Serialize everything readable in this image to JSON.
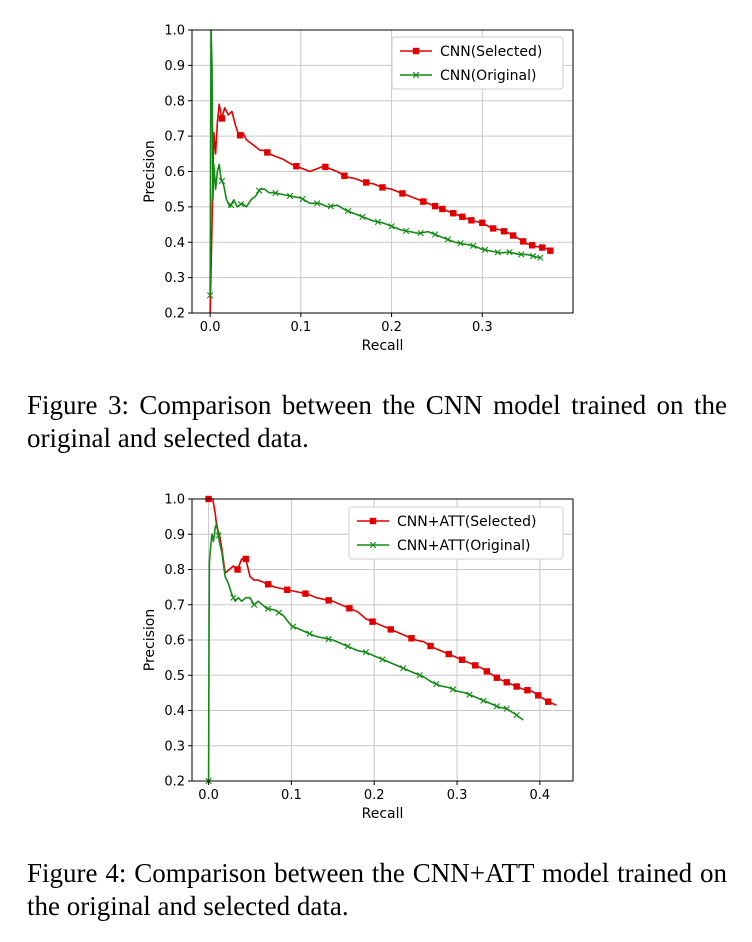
{
  "chart_data": [
    {
      "type": "line",
      "title": "",
      "xlabel": "Recall",
      "ylabel": "Precision",
      "xlim": [
        -0.02,
        0.4
      ],
      "ylim": [
        0.2,
        1.0
      ],
      "xticks": [
        "0.0",
        "0.1",
        "0.2",
        "0.3"
      ],
      "xtick_values": [
        0.0,
        0.1,
        0.2,
        0.3
      ],
      "yticks": [
        "0.2",
        "0.3",
        "0.4",
        "0.5",
        "0.6",
        "0.7",
        "0.8",
        "0.9",
        "1.0"
      ],
      "ytick_values": [
        0.2,
        0.3,
        0.4,
        0.5,
        0.6,
        0.7,
        0.8,
        0.9,
        1.0
      ],
      "grid": true,
      "legend_position": "top-right",
      "series": [
        {
          "name": "CNN(Selected)",
          "color": "#e00000",
          "marker": "square",
          "x": [
            0.0,
            0.002,
            0.004,
            0.006,
            0.008,
            0.01,
            0.013,
            0.016,
            0.02,
            0.024,
            0.028,
            0.032,
            0.036,
            0.04,
            0.045,
            0.05,
            0.055,
            0.06,
            0.065,
            0.07,
            0.08,
            0.09,
            0.1,
            0.11,
            0.12,
            0.125,
            0.13,
            0.14,
            0.15,
            0.16,
            0.17,
            0.18,
            0.19,
            0.2,
            0.21,
            0.22,
            0.23,
            0.24,
            0.25,
            0.26,
            0.27,
            0.28,
            0.29,
            0.3,
            0.31,
            0.32,
            0.33,
            0.34,
            0.35,
            0.36,
            0.37,
            0.378
          ],
          "y": [
            0.2,
            0.45,
            0.71,
            0.65,
            0.74,
            0.79,
            0.75,
            0.78,
            0.76,
            0.77,
            0.73,
            0.7,
            0.71,
            0.69,
            0.68,
            0.67,
            0.66,
            0.66,
            0.65,
            0.645,
            0.635,
            0.62,
            0.61,
            0.6,
            0.61,
            0.615,
            0.61,
            0.6,
            0.585,
            0.58,
            0.57,
            0.565,
            0.555,
            0.55,
            0.54,
            0.53,
            0.52,
            0.51,
            0.5,
            0.49,
            0.48,
            0.47,
            0.46,
            0.455,
            0.44,
            0.435,
            0.425,
            0.41,
            0.395,
            0.388,
            0.383,
            0.372
          ],
          "marked_x": [
            0.013,
            0.033,
            0.063,
            0.095,
            0.127,
            0.148,
            0.172,
            0.19,
            0.212,
            0.235,
            0.248,
            0.256,
            0.268,
            0.278,
            0.288,
            0.3,
            0.312,
            0.324,
            0.334,
            0.345,
            0.355,
            0.366,
            0.375
          ]
        },
        {
          "name": "CNN(Original)",
          "color": "#138a13",
          "marker": "x",
          "x": [
            0.0,
            0.001,
            0.002,
            0.003,
            0.004,
            0.006,
            0.008,
            0.01,
            0.012,
            0.015,
            0.018,
            0.022,
            0.026,
            0.03,
            0.035,
            0.04,
            0.045,
            0.05,
            0.055,
            0.06,
            0.065,
            0.07,
            0.08,
            0.09,
            0.1,
            0.11,
            0.12,
            0.13,
            0.14,
            0.15,
            0.16,
            0.17,
            0.18,
            0.19,
            0.2,
            0.21,
            0.22,
            0.23,
            0.24,
            0.25,
            0.26,
            0.27,
            0.28,
            0.29,
            0.3,
            0.31,
            0.32,
            0.33,
            0.34,
            0.35,
            0.36,
            0.365
          ],
          "y": [
            0.25,
            1.0,
            0.9,
            0.52,
            0.62,
            0.55,
            0.6,
            0.62,
            0.58,
            0.56,
            0.52,
            0.5,
            0.52,
            0.5,
            0.51,
            0.5,
            0.52,
            0.53,
            0.55,
            0.55,
            0.54,
            0.54,
            0.535,
            0.53,
            0.525,
            0.51,
            0.51,
            0.5,
            0.505,
            0.49,
            0.48,
            0.47,
            0.46,
            0.455,
            0.445,
            0.435,
            0.43,
            0.425,
            0.43,
            0.42,
            0.41,
            0.4,
            0.395,
            0.39,
            0.38,
            0.375,
            0.37,
            0.372,
            0.366,
            0.365,
            0.358,
            0.356
          ],
          "marked_x": [
            0.0,
            0.013,
            0.023,
            0.034,
            0.054,
            0.072,
            0.088,
            0.102,
            0.118,
            0.133,
            0.152,
            0.168,
            0.185,
            0.2,
            0.216,
            0.232,
            0.248,
            0.262,
            0.276,
            0.29,
            0.303,
            0.317,
            0.33,
            0.343,
            0.356,
            0.364
          ]
        }
      ]
    },
    {
      "type": "line",
      "title": "",
      "xlabel": "Recall",
      "ylabel": "Precision",
      "xlim": [
        -0.02,
        0.44
      ],
      "ylim": [
        0.2,
        1.0
      ],
      "xticks": [
        "0.0",
        "0.1",
        "0.2",
        "0.3",
        "0.4"
      ],
      "xtick_values": [
        0.0,
        0.1,
        0.2,
        0.3,
        0.4
      ],
      "yticks": [
        "0.2",
        "0.3",
        "0.4",
        "0.5",
        "0.6",
        "0.7",
        "0.8",
        "0.9",
        "1.0"
      ],
      "ytick_values": [
        0.2,
        0.3,
        0.4,
        0.5,
        0.6,
        0.7,
        0.8,
        0.9,
        1.0
      ],
      "grid": true,
      "legend_position": "top-right",
      "series": [
        {
          "name": "CNN+ATT(Selected)",
          "color": "#e00000",
          "marker": "square",
          "x": [
            0.0,
            0.003,
            0.005,
            0.008,
            0.01,
            0.013,
            0.016,
            0.02,
            0.025,
            0.03,
            0.035,
            0.04,
            0.045,
            0.05,
            0.055,
            0.06,
            0.07,
            0.08,
            0.09,
            0.1,
            0.11,
            0.12,
            0.13,
            0.14,
            0.15,
            0.16,
            0.17,
            0.18,
            0.19,
            0.2,
            0.21,
            0.22,
            0.23,
            0.24,
            0.25,
            0.26,
            0.27,
            0.28,
            0.29,
            0.3,
            0.31,
            0.32,
            0.33,
            0.34,
            0.35,
            0.36,
            0.37,
            0.38,
            0.39,
            0.4,
            0.41,
            0.42
          ],
          "y": [
            1.0,
            1.0,
            1.0,
            0.96,
            0.92,
            0.9,
            0.86,
            0.79,
            0.8,
            0.81,
            0.8,
            0.83,
            0.83,
            0.78,
            0.77,
            0.77,
            0.76,
            0.75,
            0.745,
            0.74,
            0.735,
            0.73,
            0.72,
            0.715,
            0.71,
            0.7,
            0.69,
            0.68,
            0.66,
            0.65,
            0.64,
            0.63,
            0.62,
            0.61,
            0.6,
            0.595,
            0.58,
            0.57,
            0.56,
            0.55,
            0.54,
            0.53,
            0.52,
            0.505,
            0.49,
            0.48,
            0.47,
            0.46,
            0.455,
            0.44,
            0.425,
            0.415
          ],
          "marked_x": [
            0.0,
            0.035,
            0.045,
            0.072,
            0.095,
            0.117,
            0.145,
            0.17,
            0.198,
            0.22,
            0.245,
            0.268,
            0.29,
            0.306,
            0.322,
            0.336,
            0.348,
            0.36,
            0.372,
            0.385,
            0.398,
            0.41
          ]
        },
        {
          "name": "CNN+ATT(Original)",
          "color": "#138a13",
          "marker": "x",
          "x": [
            0.0,
            0.0005,
            0.001,
            0.002,
            0.004,
            0.006,
            0.008,
            0.01,
            0.013,
            0.016,
            0.02,
            0.024,
            0.028,
            0.032,
            0.036,
            0.04,
            0.045,
            0.05,
            0.055,
            0.06,
            0.07,
            0.08,
            0.09,
            0.1,
            0.11,
            0.12,
            0.13,
            0.14,
            0.15,
            0.16,
            0.17,
            0.18,
            0.19,
            0.2,
            0.21,
            0.22,
            0.23,
            0.24,
            0.25,
            0.26,
            0.27,
            0.28,
            0.29,
            0.3,
            0.31,
            0.32,
            0.33,
            0.34,
            0.35,
            0.36,
            0.37,
            0.38
          ],
          "y": [
            0.2,
            0.6,
            0.82,
            0.85,
            0.9,
            0.88,
            0.92,
            0.93,
            0.88,
            0.85,
            0.78,
            0.76,
            0.73,
            0.71,
            0.72,
            0.71,
            0.72,
            0.72,
            0.7,
            0.71,
            0.69,
            0.685,
            0.67,
            0.64,
            0.63,
            0.62,
            0.61,
            0.605,
            0.6,
            0.59,
            0.58,
            0.57,
            0.565,
            0.555,
            0.545,
            0.535,
            0.525,
            0.515,
            0.505,
            0.495,
            0.48,
            0.47,
            0.465,
            0.455,
            0.45,
            0.44,
            0.43,
            0.42,
            0.41,
            0.405,
            0.39,
            0.373
          ],
          "marked_x": [
            0.0,
            0.012,
            0.03,
            0.055,
            0.072,
            0.085,
            0.102,
            0.122,
            0.145,
            0.168,
            0.19,
            0.21,
            0.235,
            0.255,
            0.275,
            0.295,
            0.315,
            0.332,
            0.348,
            0.36,
            0.372
          ]
        }
      ]
    }
  ],
  "captions": [
    "Figure 3: Comparison between the CNN model trained on the original and selected data.",
    "Figure 4: Comparison between the CNN+ATT model trained on the original and selected data."
  ]
}
